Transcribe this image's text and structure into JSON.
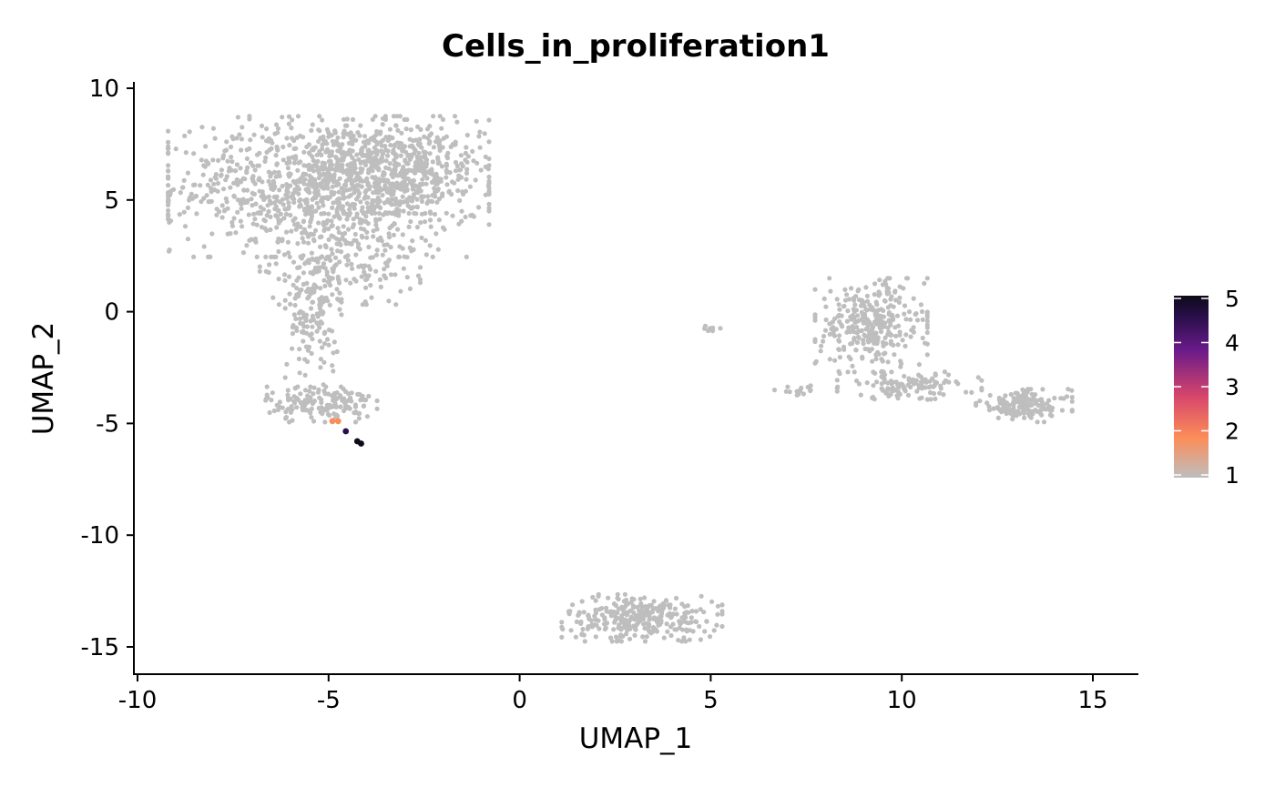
{
  "chart_data": {
    "type": "scatter",
    "title": "Cells_in_proliferation1",
    "xlabel": "UMAP_1",
    "ylabel": "UMAP_2",
    "xlim": [
      -10.2,
      16.2
    ],
    "ylim": [
      -16.2,
      10.2
    ],
    "x_ticks": [
      -10,
      -5,
      0,
      5,
      10,
      15
    ],
    "y_ticks": [
      10,
      5,
      0,
      -5,
      -10,
      -15
    ],
    "x_tick_labels": [
      "-10",
      "-5",
      "0",
      "5",
      "10",
      "15"
    ],
    "y_tick_labels": [
      "10",
      "5",
      "0",
      "-5",
      "-10",
      "-15"
    ],
    "colorbar": {
      "min": 1,
      "max": 5,
      "ticks": [
        5,
        4,
        3,
        2,
        1
      ],
      "tick_labels": [
        "5",
        "4",
        "3",
        "2",
        "1"
      ],
      "colors": [
        "#bebebe",
        "#fc8d59",
        "#d6456b",
        "#6a1b8a",
        "#2a0f4b",
        "#0d0a1a"
      ],
      "placement": "right"
    },
    "background_color": "#bebebe",
    "clusters": [
      {
        "name": "left-upper-lobe",
        "cx": -5.0,
        "cy": 5.6,
        "sx": 2.0,
        "sy": 1.5,
        "n": 1100
      },
      {
        "name": "left-upper-right",
        "cx": -3.2,
        "cy": 6.5,
        "sx": 1.1,
        "sy": 1.0,
        "n": 350
      },
      {
        "name": "left-stalk",
        "cx": -5.4,
        "cy": 0.0,
        "sx": 0.35,
        "sy": 1.6,
        "n": 150
      },
      {
        "name": "left-mid",
        "cx": -4.7,
        "cy": 2.0,
        "sx": 1.0,
        "sy": 0.8,
        "n": 150
      },
      {
        "name": "left-bottom-blob",
        "cx": -5.2,
        "cy": -4.1,
        "sx": 0.7,
        "sy": 0.4,
        "n": 160
      },
      {
        "name": "bottom-cluster",
        "cx": 3.2,
        "cy": -13.7,
        "sx": 1.0,
        "sy": 0.5,
        "n": 300
      },
      {
        "name": "right-tri-top",
        "cx": 9.2,
        "cy": -0.6,
        "sx": 0.7,
        "sy": 1.0,
        "n": 320
      },
      {
        "name": "right-tri-arm",
        "cx": 10.2,
        "cy": -3.3,
        "sx": 0.9,
        "sy": 0.3,
        "n": 120
      },
      {
        "name": "right-small",
        "cx": 13.2,
        "cy": -4.2,
        "sx": 0.6,
        "sy": 0.35,
        "n": 150
      },
      {
        "name": "tiny-mid",
        "cx": 5.0,
        "cy": -0.75,
        "sx": 0.12,
        "sy": 0.05,
        "n": 8
      },
      {
        "name": "left-tail",
        "cx": 7.3,
        "cy": -3.5,
        "sx": 0.3,
        "sy": 0.12,
        "n": 15
      }
    ],
    "highlight_points": [
      {
        "x": -4.9,
        "y": -4.9,
        "value": 2
      },
      {
        "x": -4.75,
        "y": -4.9,
        "value": 2
      },
      {
        "x": -4.55,
        "y": -5.35,
        "value": 4
      },
      {
        "x": -4.25,
        "y": -5.8,
        "value": 5
      },
      {
        "x": -4.15,
        "y": -5.9,
        "value": 5
      }
    ]
  }
}
